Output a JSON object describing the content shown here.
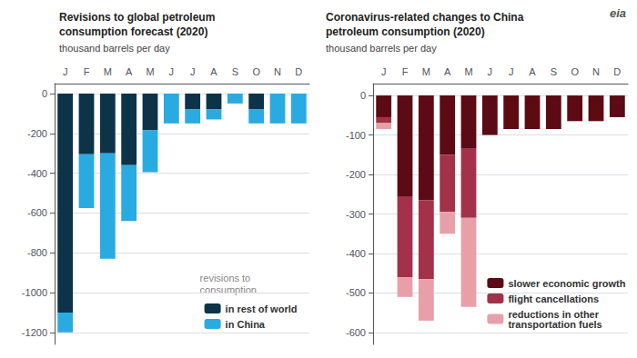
{
  "chart_data": [
    {
      "type": "bar",
      "title": "Revisions to global petroleum\nconsumption forecast (2020)",
      "subtitle": "thousand barrels per day",
      "categories": [
        "J",
        "F",
        "M",
        "A",
        "M",
        "J",
        "J",
        "A",
        "S",
        "O",
        "N",
        "D"
      ],
      "series": [
        {
          "name": "in rest of world",
          "color": "#0D3349",
          "values": [
            -1100,
            -305,
            -300,
            -360,
            -185,
            0,
            -80,
            -80,
            0,
            -80,
            0,
            0
          ]
        },
        {
          "name": "in China",
          "color": "#29ABE2",
          "values": [
            -100,
            -270,
            -530,
            -280,
            -210,
            -150,
            -70,
            -50,
            -50,
            -70,
            -150,
            -150
          ]
        }
      ],
      "stacked": true,
      "ylim": [
        -1260,
        50
      ],
      "yticks": [
        0,
        -200,
        -400,
        -600,
        -800,
        -1000,
        -1200
      ],
      "grid": true,
      "legend": "lower right",
      "annotations": [
        "revisions to\nconsumption"
      ]
    },
    {
      "type": "bar",
      "title": "Coronavirus-related changes to China\npetroleum consumption (2020)",
      "subtitle": "thousand barrels per day",
      "categories": [
        "J",
        "F",
        "M",
        "A",
        "M",
        "J",
        "J",
        "A",
        "S",
        "O",
        "N",
        "D"
      ],
      "series": [
        {
          "name": "slower economic growth",
          "color": "#5C0A14",
          "values": [
            -55,
            -255,
            -265,
            -150,
            -135,
            -100,
            -85,
            -85,
            -85,
            -65,
            -65,
            -55
          ]
        },
        {
          "name": "flight cancellations",
          "color": "#A3314A",
          "values": [
            -15,
            -205,
            -200,
            -145,
            -175,
            0,
            0,
            0,
            0,
            0,
            0,
            0
          ]
        },
        {
          "name": "reductions in other\ntransportation fuels",
          "color": "#E8A0A8",
          "values": [
            -15,
            -50,
            -105,
            -55,
            -225,
            0,
            0,
            0,
            0,
            0,
            0,
            0
          ]
        }
      ],
      "stacked": true,
      "ylim": [
        -630,
        30
      ],
      "yticks": [
        0,
        -100,
        -200,
        -300,
        -400,
        -500,
        -600
      ],
      "grid": true,
      "legend": "lower right",
      "annotations": [
        "eia"
      ]
    }
  ]
}
